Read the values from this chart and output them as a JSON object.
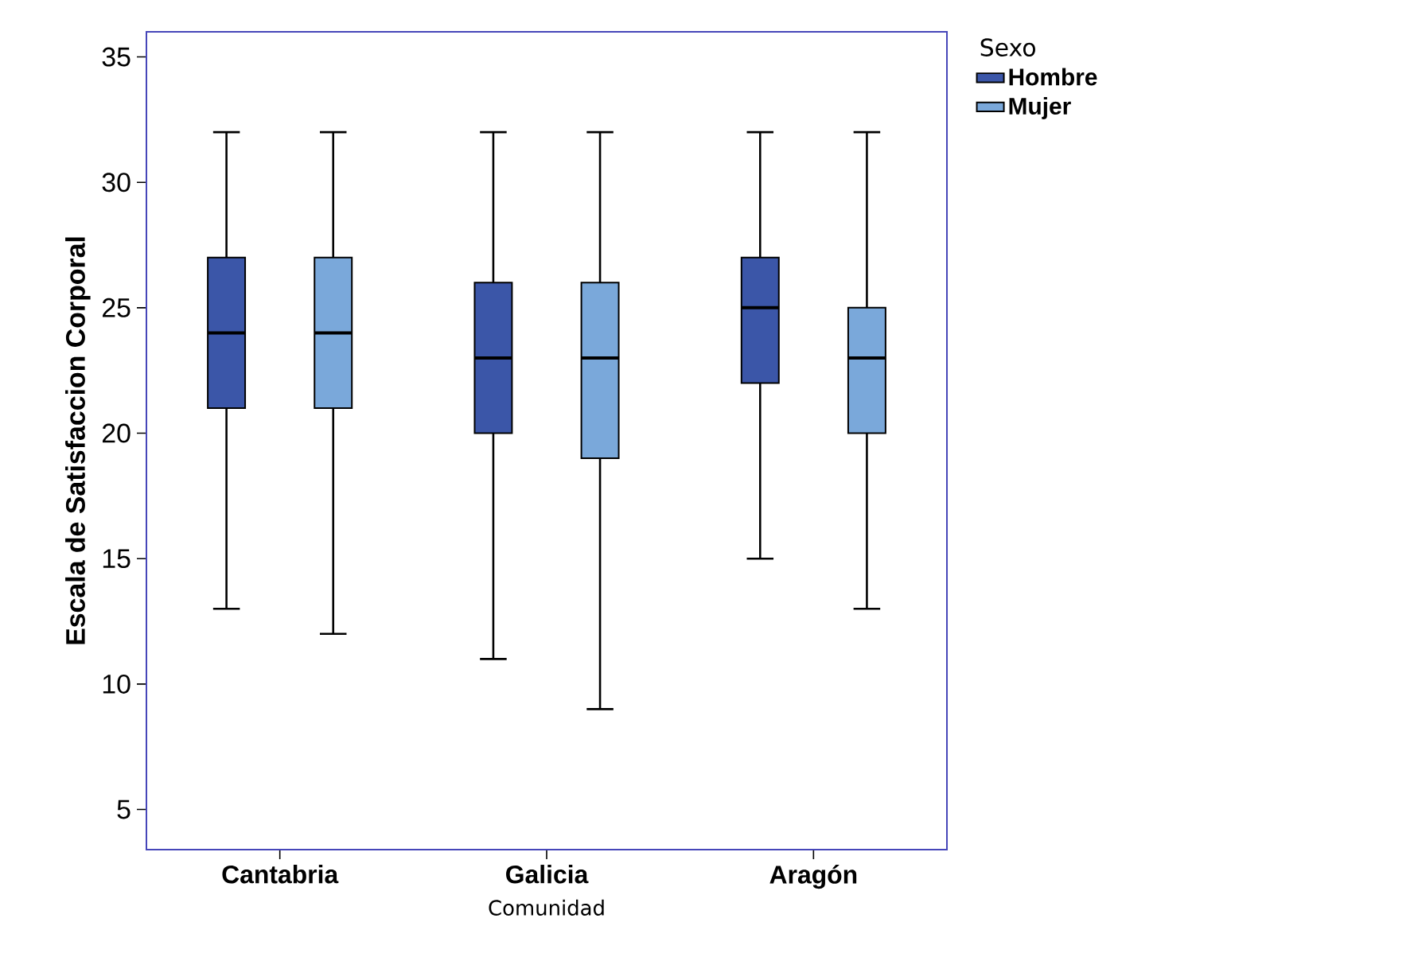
{
  "chart_data": {
    "type": "box",
    "xlabel": "Comunidad",
    "ylabel": "Escala de Satisfaccion Corporal",
    "legend_title": "Sexo",
    "legend": "top right",
    "categories": [
      "Cantabria",
      "Galicia",
      "Aragón"
    ],
    "ylim": [
      3.4,
      36
    ],
    "yticks": [
      5,
      10,
      15,
      20,
      25,
      30,
      35
    ],
    "series": [
      {
        "name": "Hombre",
        "color": "#3b56a8",
        "boxes": [
          {
            "low": 13,
            "q1": 21,
            "median": 24,
            "q3": 27,
            "high": 32
          },
          {
            "low": 11,
            "q1": 20,
            "median": 23,
            "q3": 26,
            "high": 32
          },
          {
            "low": 15,
            "q1": 22,
            "median": 25,
            "q3": 27,
            "high": 32
          }
        ]
      },
      {
        "name": "Mujer",
        "color": "#7aa8da",
        "boxes": [
          {
            "low": 12,
            "q1": 21,
            "median": 24,
            "q3": 27,
            "high": 32
          },
          {
            "low": 9,
            "q1": 19,
            "median": 23,
            "q3": 26,
            "high": 32
          },
          {
            "low": 13,
            "q1": 20,
            "median": 23,
            "q3": 25,
            "high": 32
          }
        ]
      }
    ]
  }
}
